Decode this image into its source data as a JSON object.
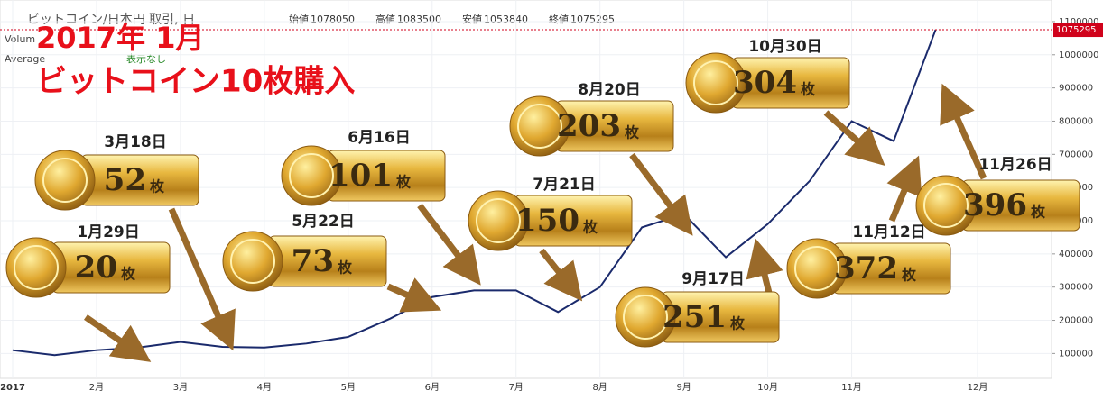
{
  "chart_data": {
    "type": "line",
    "symbol": "ビットコイン/日本円 取引, 日",
    "ohlc": [
      {
        "label": "始値",
        "value": 1078050
      },
      {
        "label": "高値",
        "value": 1083500
      },
      {
        "label": "安値",
        "value": 1053840
      },
      {
        "label": "終値",
        "value": 1075295
      }
    ],
    "indicators": [
      "Volum",
      "Average"
    ],
    "indicator_status": "表示なし",
    "headline": [
      "2017年 1月",
      "ビットコイン10枚購入"
    ],
    "categories": [
      "2017",
      null,
      "2月",
      null,
      "3月",
      null,
      "4月",
      null,
      "5月",
      null,
      "6月",
      null,
      "7月",
      null,
      "8月",
      null,
      "9月",
      null,
      "10月",
      null,
      "11月",
      null,
      null,
      "12月"
    ],
    "series": [
      {
        "color": "#1a2a6c",
        "values": [
          110000,
          95000,
          110000,
          118000,
          135000,
          120000,
          118000,
          130000,
          150000,
          205000,
          270000,
          290000,
          290000,
          225000,
          300000,
          480000,
          520000,
          390000,
          490000,
          620000,
          800000,
          740000,
          1075295,
          null
        ]
      }
    ],
    "last_value": {
      "value": 1075295,
      "label": "1075295",
      "color": "#d0021b"
    },
    "ylim": [
      25000,
      1165000
    ],
    "yticks": [
      100000,
      200000,
      300000,
      400000,
      500000,
      600000,
      700000,
      800000,
      900000,
      1000000,
      1100000
    ],
    "grid": true,
    "annotations": [
      {
        "date": "1月29日",
        "count": 20,
        "unit": "枚"
      },
      {
        "date": "3月18日",
        "count": 52,
        "unit": "枚"
      },
      {
        "date": "5月22日",
        "count": 73,
        "unit": "枚"
      },
      {
        "date": "6月16日",
        "count": 101,
        "unit": "枚"
      },
      {
        "date": "7月21日",
        "count": 150,
        "unit": "枚"
      },
      {
        "date": "8月20日",
        "count": 203,
        "unit": "枚"
      },
      {
        "date": "9月17日",
        "count": 251,
        "unit": "枚"
      },
      {
        "date": "10月30日",
        "count": 304,
        "unit": "枚"
      },
      {
        "date": "11月12日",
        "count": 372,
        "unit": "枚"
      },
      {
        "date": "11月26日",
        "count": 396,
        "unit": "枚"
      }
    ]
  }
}
